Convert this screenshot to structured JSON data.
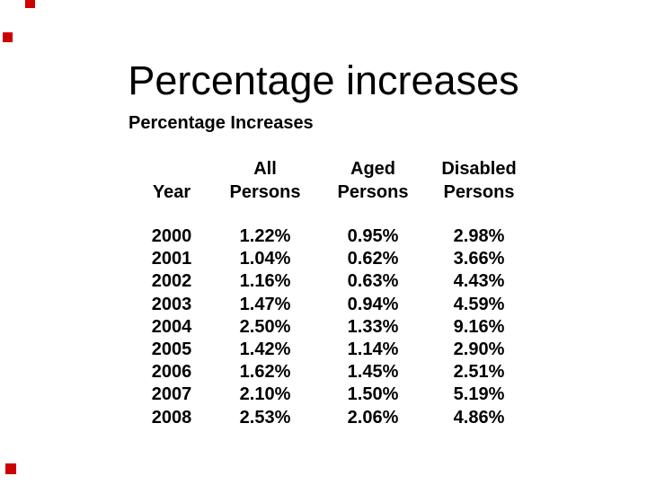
{
  "slide": {
    "title": "Percentage increases",
    "background_color": "#ffffff",
    "text_color": "#000000"
  },
  "decorations": {
    "marker_color": "#cc0000",
    "markers": [
      "top-left-edge",
      "left-upper",
      "bottom-left"
    ]
  },
  "table": {
    "title": "Percentage Increases",
    "columns": [
      {
        "line1": "",
        "line2": "Year"
      },
      {
        "line1": "All",
        "line2": "Persons"
      },
      {
        "line1": "Aged",
        "line2": "Persons"
      },
      {
        "line1": "Disabled",
        "line2": "Persons"
      }
    ],
    "rows": [
      {
        "year": "2000",
        "all": "1.22%",
        "aged": "0.95%",
        "disabled": "2.98%"
      },
      {
        "year": "2001",
        "all": "1.04%",
        "aged": "0.62%",
        "disabled": "3.66%"
      },
      {
        "year": "2002",
        "all": "1.16%",
        "aged": "0.63%",
        "disabled": "4.43%"
      },
      {
        "year": "2003",
        "all": "1.47%",
        "aged": "0.94%",
        "disabled": "4.59%"
      },
      {
        "year": "2004",
        "all": "2.50%",
        "aged": "1.33%",
        "disabled": "9.16%"
      },
      {
        "year": "2005",
        "all": "1.42%",
        "aged": "1.14%",
        "disabled": "2.90%"
      },
      {
        "year": "2006",
        "all": "1.62%",
        "aged": "1.45%",
        "disabled": "2.51%"
      },
      {
        "year": "2007",
        "all": "2.10%",
        "aged": "1.50%",
        "disabled": "5.19%"
      },
      {
        "year": "2008",
        "all": "2.53%",
        "aged": "2.06%",
        "disabled": "4.86%"
      }
    ]
  }
}
